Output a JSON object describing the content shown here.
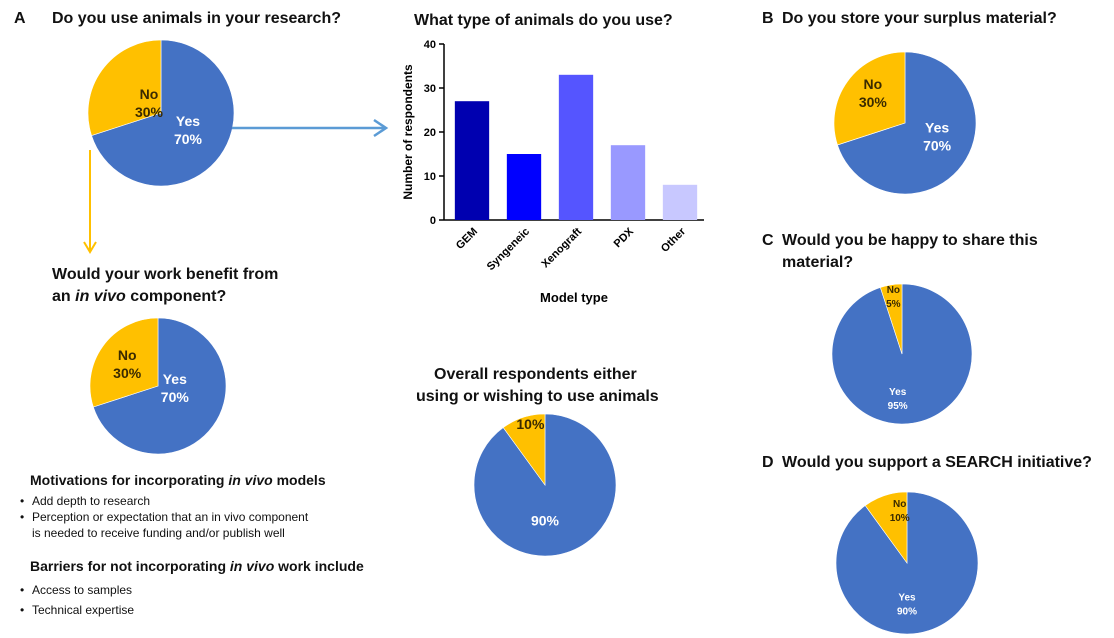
{
  "panelA": {
    "letter": "A",
    "title": "Do you use animals in your research?",
    "benefit_title_1": "Would your work benefit from",
    "benefit_title_2a": "an ",
    "benefit_title_2b": "in vivo",
    "benefit_title_2c": " component?",
    "motivations_a": "Motivations for incorporating ",
    "motivations_b": "in vivo",
    "motivations_c": " models",
    "motivations": [
      "Add depth to research",
      "Perception or expectation that an in vivo component",
      "is needed to receive funding and/or publish well"
    ],
    "barriers_a": "Barriers for not incorporating ",
    "barriers_b": "in vivo",
    "barriers_c": " work include",
    "barriers": [
      "Access to samples",
      "Technical expertise"
    ]
  },
  "panelB": {
    "letter": "B",
    "title": "Do you store your surplus material?"
  },
  "panelC": {
    "letter": "C",
    "title_1": "Would you be happy to share this",
    "title_2": "material?"
  },
  "panelD": {
    "letter": "D",
    "title": "Would you support a SEARCH initiative?"
  },
  "overall": {
    "title_1": "Overall respondents either",
    "title_2": "using or wishing to use animals"
  },
  "colors": {
    "yes": "#4472C4",
    "no": "#FFC000",
    "arrow_blue": "#5B9BD5",
    "arrow_gold": "#FFC000"
  },
  "chart_data": [
    {
      "id": "animal-use",
      "type": "pie",
      "labels": [
        "Yes",
        "No"
      ],
      "values": [
        70,
        30
      ],
      "display": [
        "70%",
        "30%"
      ]
    },
    {
      "id": "animal-type",
      "type": "bar",
      "title": "What type of animals do you use?",
      "xlabel": "Model type",
      "ylabel": "Number of respondents",
      "categories": [
        "GEM",
        "Syngeneic",
        "Xenograft",
        "PDX",
        "Other"
      ],
      "values": [
        27,
        15,
        33,
        17,
        8
      ],
      "colors": [
        "#0000B0",
        "#0000FF",
        "#5555FF",
        "#9999FF",
        "#C8C8FF"
      ],
      "ylim": [
        0,
        40
      ],
      "yticks": [
        "0",
        "10",
        "20",
        "30",
        "40"
      ]
    },
    {
      "id": "invivo-benefit",
      "type": "pie",
      "labels": [
        "Yes",
        "No"
      ],
      "values": [
        70,
        30
      ],
      "display": [
        "70%",
        "30%"
      ]
    },
    {
      "id": "overall",
      "type": "pie",
      "labels": [
        "",
        ""
      ],
      "values": [
        90,
        10
      ],
      "display": [
        "90%",
        "10%"
      ]
    },
    {
      "id": "store-surplus",
      "type": "pie",
      "labels": [
        "Yes",
        "No"
      ],
      "values": [
        70,
        30
      ],
      "display": [
        "70%",
        "30%"
      ]
    },
    {
      "id": "share-material",
      "type": "pie",
      "labels": [
        "Yes",
        "No"
      ],
      "values": [
        95,
        5
      ],
      "display": [
        "95%",
        "5%"
      ]
    },
    {
      "id": "search-initiative",
      "type": "pie",
      "labels": [
        "Yes",
        "No"
      ],
      "values": [
        90,
        10
      ],
      "display": [
        "90%",
        "10%"
      ]
    }
  ]
}
